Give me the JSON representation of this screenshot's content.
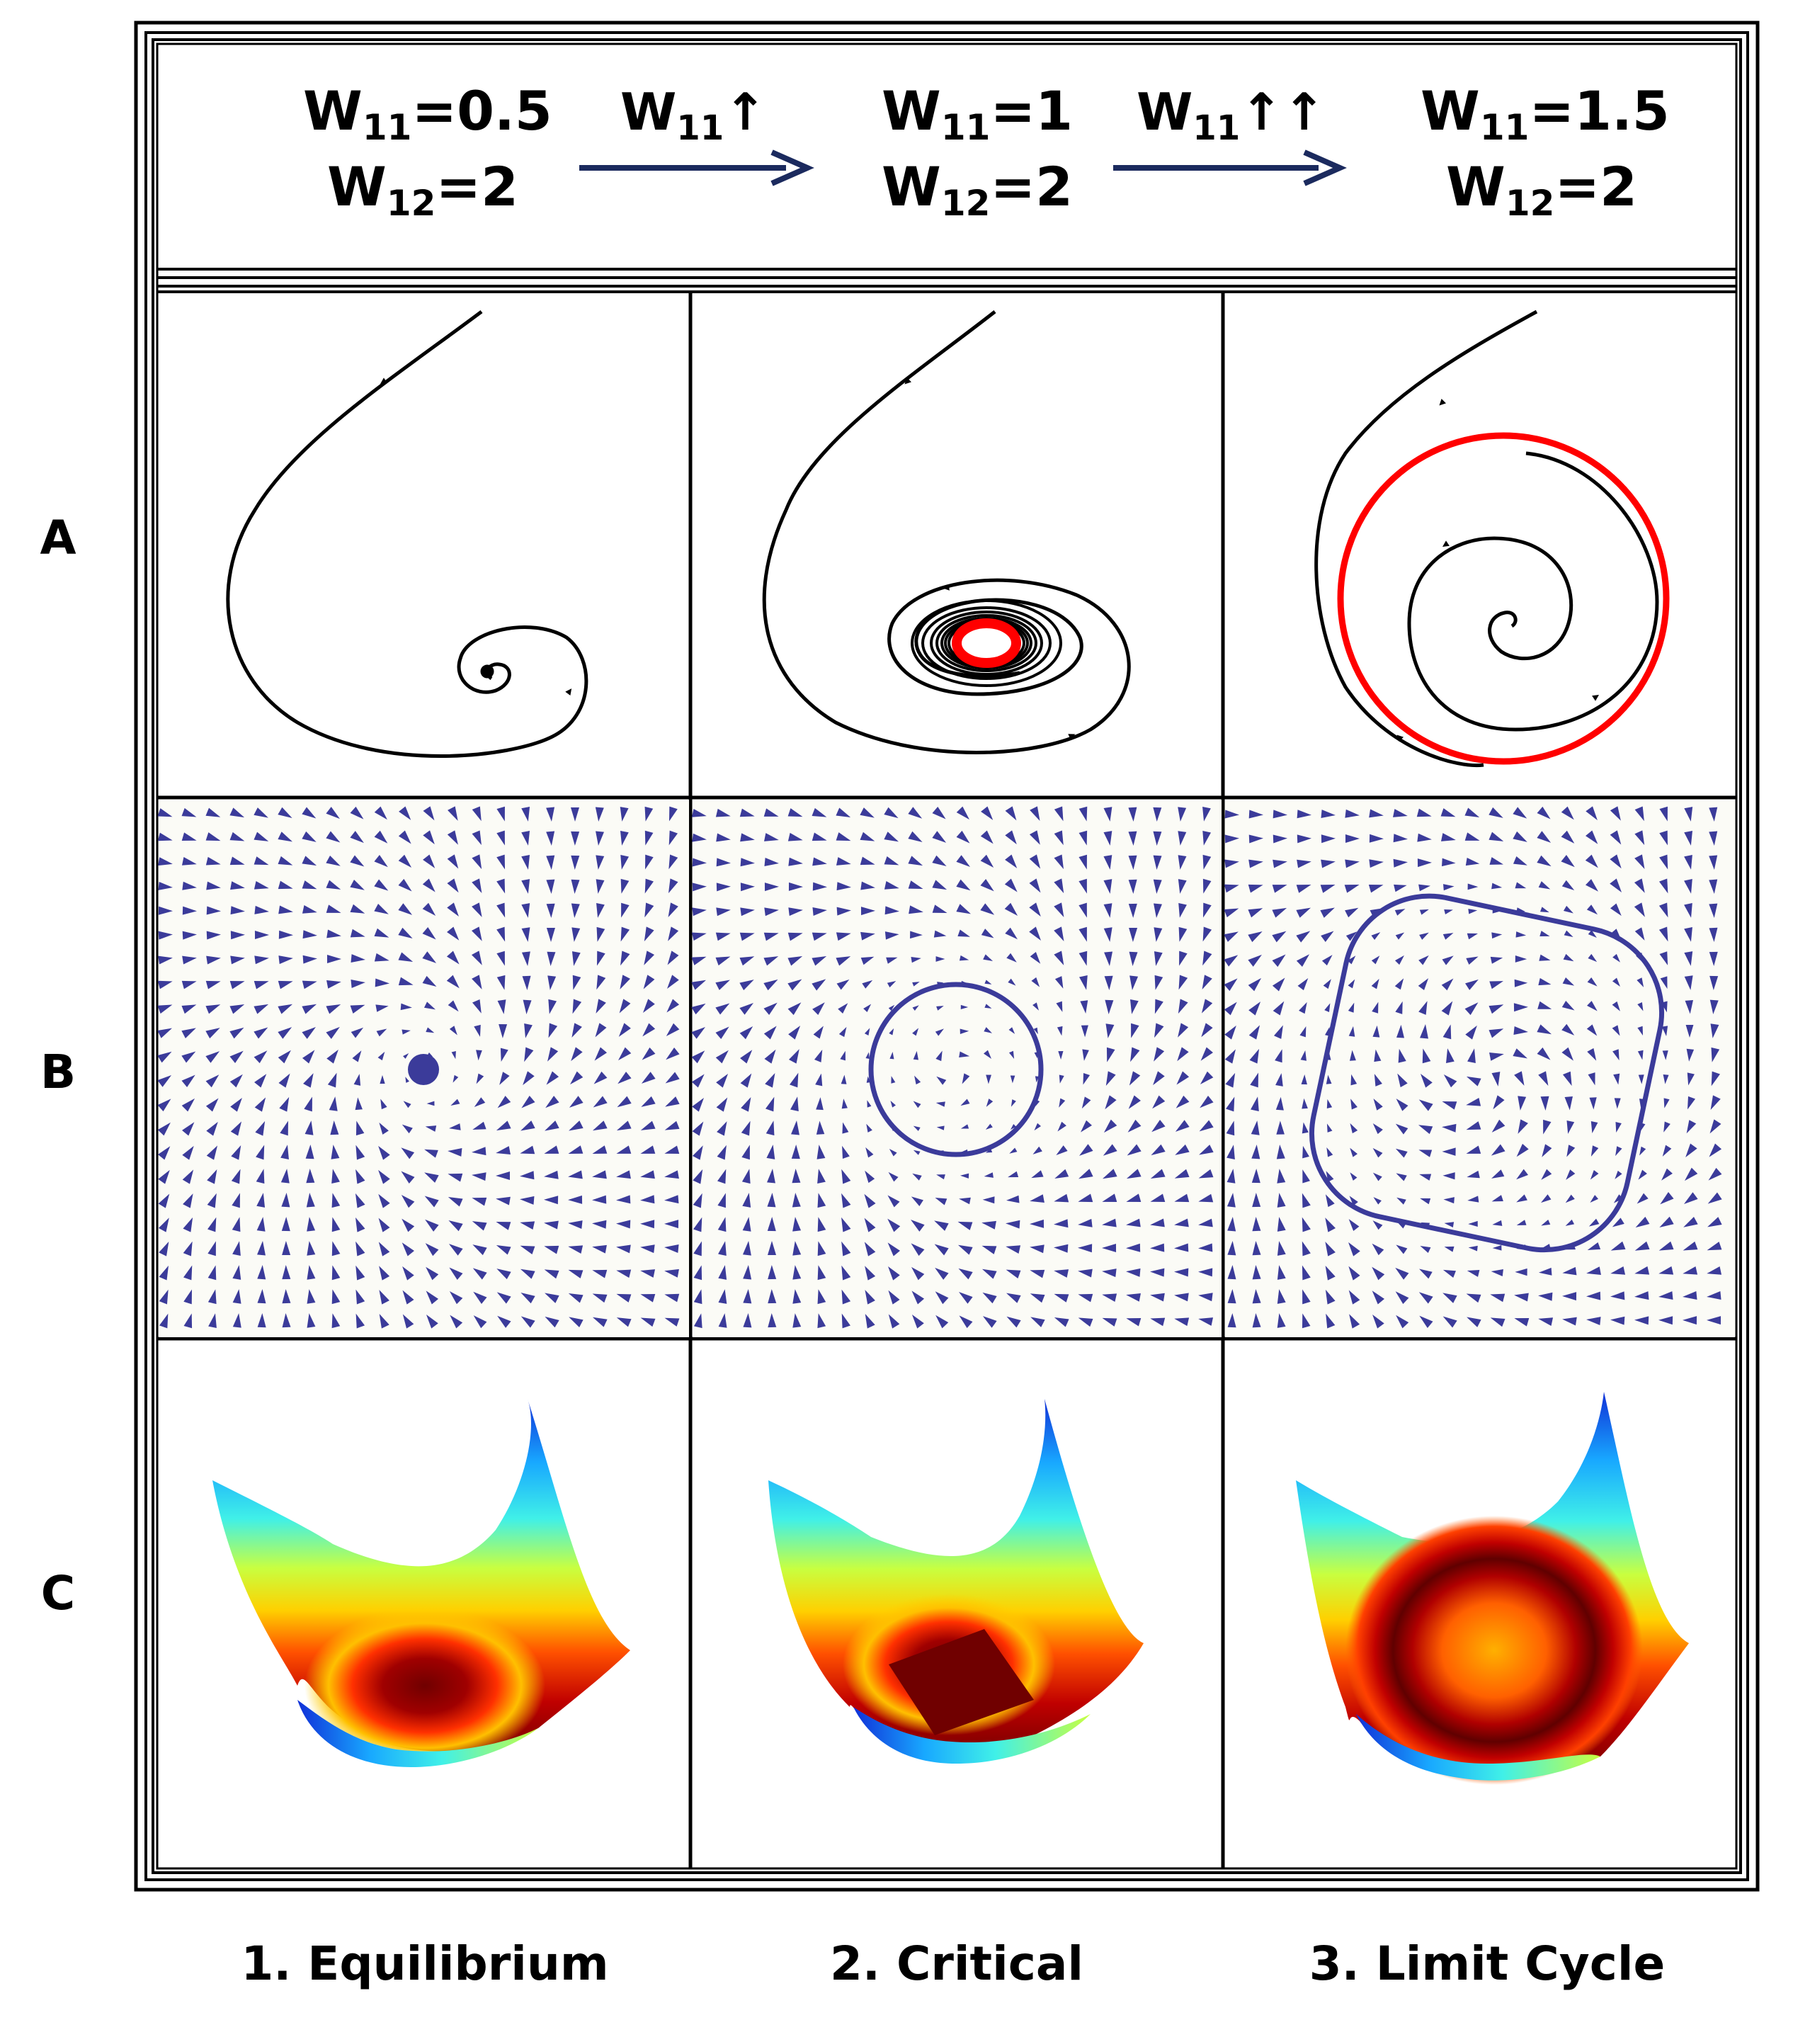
{
  "header": {
    "states": [
      {
        "w11": "W",
        "w11_sub": "11",
        "w11_val": "=0.5",
        "w12": "W",
        "w12_sub": "12",
        "w12_val": "=2"
      },
      {
        "w11": "W",
        "w11_sub": "11",
        "w11_val": "=1",
        "w12": "W",
        "w12_sub": "12",
        "w12_val": "=2"
      },
      {
        "w11": "W",
        "w11_sub": "11",
        "w11_val": "=1.5",
        "w12": "W",
        "w12_sub": "12",
        "w12_val": "=2"
      }
    ],
    "transitions": [
      {
        "label": "W",
        "sub": "11",
        "suffix": "↑"
      },
      {
        "label": "W",
        "sub": "11",
        "suffix": "↑↑"
      }
    ]
  },
  "rows": [
    "A",
    "B",
    "C"
  ],
  "columns": [
    "1. Equilibrium",
    "2. Critical",
    "3. Limit Cycle"
  ],
  "colors": {
    "trajectory": "#000000",
    "limit_cycle_A": "#ff0000",
    "vector_field": "#3b3b9a",
    "transition_arrow": "#1b2a5e",
    "field_background": "#fbfbf6",
    "border": "#000000"
  },
  "icons": {
    "transition_arrow": "right-arrow-icon",
    "trajectory_arrowhead": "arrowhead-icon"
  }
}
